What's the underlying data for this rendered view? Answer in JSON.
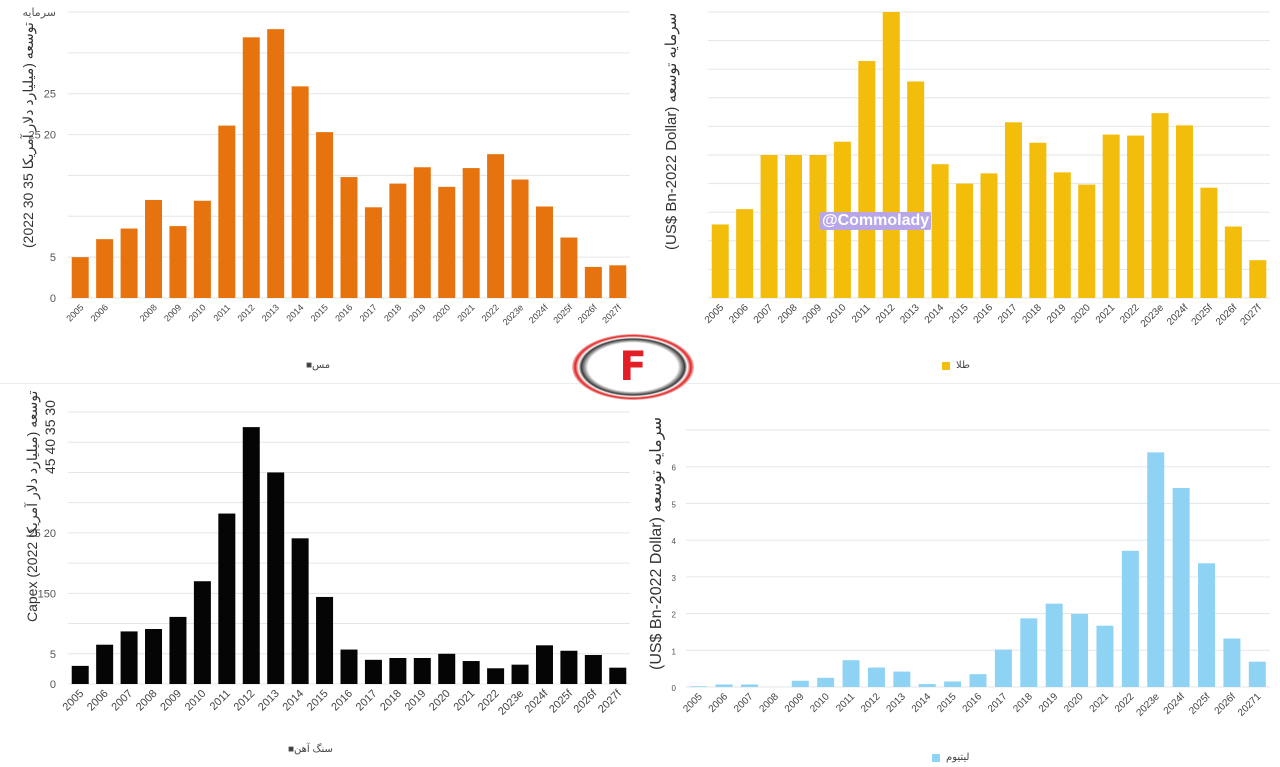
{
  "watermark": "@Commolady",
  "logo": {
    "letter": "F",
    "icon": "commodity-logo-icon"
  },
  "chart_data": [
    {
      "id": "copper",
      "type": "bar",
      "color": "#e7730e",
      "ylabel": "(2022 30 35 میلیارد دلار آمریکا) توسعه",
      "legend": "■مس",
      "ylim": [
        0,
        35
      ],
      "yticks": [
        "0",
        "5",
        "",
        "",
        "25 20",
        "25",
        "",
        "سرمایه"
      ],
      "categories": [
        "2005",
        "2006",
        "",
        "2008",
        "2009",
        "2010",
        "2011",
        "2012",
        "2013",
        "2014",
        "2015",
        "2016",
        "2017",
        "2018",
        "2019",
        "2020",
        "2021",
        "2022",
        "2023e",
        "2024f",
        "2025f",
        "2026f",
        "2027f"
      ],
      "values": [
        5,
        7.2,
        8.5,
        12,
        8.8,
        11.9,
        21.1,
        31.9,
        32.9,
        25.9,
        20.3,
        14.8,
        11.1,
        14,
        16,
        13.6,
        15.9,
        17.6,
        14.5,
        11.2,
        7.4,
        3.8,
        4
      ]
    },
    {
      "id": "gold",
      "type": "bar",
      "color": "#f2bd0b",
      "ylabel": "(US$ Bn-2022 Dollar) سرمایه توسعه",
      "legend": "طلا",
      "ylim": [
        0,
        28
      ],
      "yticks": [],
      "categories": [
        "2005",
        "2006",
        "2007",
        "2008",
        "2009",
        "2010",
        "2011",
        "2012",
        "2013",
        "2014",
        "2015",
        "2016",
        "2017",
        "2018",
        "2019",
        "2020",
        "2021",
        "2022",
        "2023e",
        "2024f",
        "2025f",
        "2026f",
        "2027f"
      ],
      "values": [
        7.2,
        8.7,
        14,
        14,
        14,
        15.3,
        23.2,
        28,
        21.2,
        13.1,
        11.2,
        12.2,
        17.2,
        15.2,
        12.3,
        11.1,
        16,
        15.9,
        18.1,
        16.9,
        10.8,
        7,
        3.7
      ]
    },
    {
      "id": "iron",
      "type": "bar",
      "color": "#050505",
      "ylabel": "Capex (2022 میلیارد دلار آمریکا) توسعه",
      "ylabel_top": "45 40 35 30",
      "legend": "■سنگ آهن",
      "ylim": [
        0,
        45
      ],
      "yticks": [
        "0",
        "5",
        "",
        "150",
        "",
        "25 20",
        "",
        "",
        ""
      ],
      "categories": [
        "2005",
        "2006",
        "2007",
        "2008",
        "2009",
        "2010",
        "2011",
        "2012",
        "2013",
        "2014",
        "2015",
        "2016",
        "2017",
        "2018",
        "2019",
        "2020",
        "2021",
        "2022",
        "2023e",
        "2024f",
        "2025f",
        "2026f",
        "2027f"
      ],
      "values": [
        3,
        6.5,
        8.7,
        9.1,
        11.1,
        17,
        28.2,
        42.5,
        35,
        24.1,
        14.4,
        5.7,
        4,
        4.3,
        4.3,
        5,
        3.8,
        2.6,
        3.2,
        6.4,
        5.5,
        4.8,
        2.7
      ]
    },
    {
      "id": "lithium",
      "type": "bar",
      "color": "#8fd3f4",
      "ylabel": "(US$ Bn-2022 Dollar) سرمایه توسعه",
      "legend": "لیتیوم",
      "ylim": [
        0,
        7
      ],
      "yticks": [
        "0",
        "1",
        "2",
        "3",
        "4",
        "5",
        "6",
        ""
      ],
      "categories": [
        "2005",
        "2006",
        "2007",
        "2008",
        "2009",
        "2010",
        "2011",
        "2012",
        "2013",
        "2014",
        "2015",
        "2016",
        "2017",
        "2018",
        "2019",
        "2020",
        "2021",
        "2022",
        "2023e",
        "2024f",
        "2025f",
        "2026f",
        "20271"
      ],
      "values": [
        0.02,
        0.07,
        0.07,
        0,
        0.17,
        0.25,
        0.73,
        0.53,
        0.42,
        0.08,
        0.15,
        0.35,
        1.02,
        1.87,
        2.27,
        1.99,
        1.67,
        3.71,
        6.39,
        5.42,
        3.37,
        1.32,
        0.69
      ]
    }
  ]
}
